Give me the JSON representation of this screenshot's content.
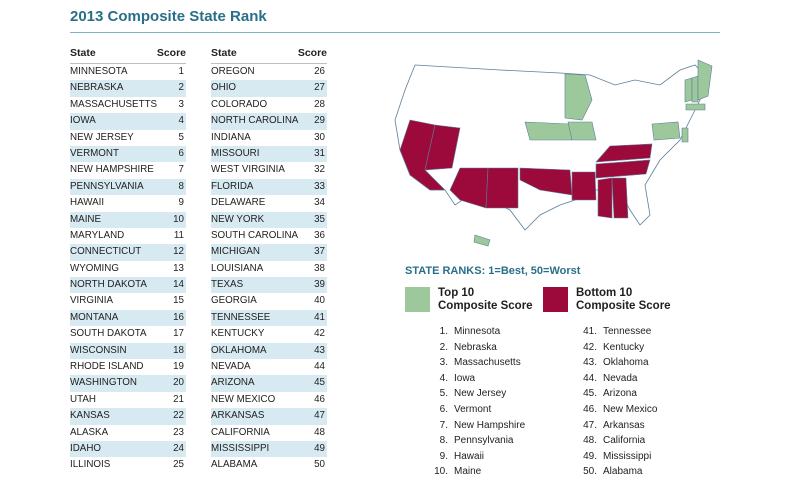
{
  "title": "2013 Composite State Rank",
  "table": {
    "header_state": "State",
    "header_score": "Score",
    "left": [
      {
        "state": "MINNESOTA",
        "score": "1"
      },
      {
        "state": "NEBRASKA",
        "score": "2"
      },
      {
        "state": "MASSACHUSETTS",
        "score": "3"
      },
      {
        "state": "IOWA",
        "score": "4"
      },
      {
        "state": "NEW JERSEY",
        "score": "5"
      },
      {
        "state": "VERMONT",
        "score": "6"
      },
      {
        "state": "NEW HAMPSHIRE",
        "score": "7"
      },
      {
        "state": "PENNSYLVANIA",
        "score": "8"
      },
      {
        "state": "HAWAII",
        "score": "9"
      },
      {
        "state": "MAINE",
        "score": "10"
      },
      {
        "state": "MARYLAND",
        "score": "11"
      },
      {
        "state": "CONNECTICUT",
        "score": "12"
      },
      {
        "state": "WYOMING",
        "score": "13"
      },
      {
        "state": "NORTH DAKOTA",
        "score": "14"
      },
      {
        "state": "VIRGINIA",
        "score": "15"
      },
      {
        "state": "MONTANA",
        "score": "16"
      },
      {
        "state": "SOUTH DAKOTA",
        "score": "17"
      },
      {
        "state": "WISCONSIN",
        "score": "18"
      },
      {
        "state": "RHODE ISLAND",
        "score": "19"
      },
      {
        "state": "WASHINGTON",
        "score": "20"
      },
      {
        "state": "UTAH",
        "score": "21"
      },
      {
        "state": "KANSAS",
        "score": "22"
      },
      {
        "state": "ALASKA",
        "score": "23"
      },
      {
        "state": "IDAHO",
        "score": "24"
      },
      {
        "state": "ILLINOIS",
        "score": "25"
      }
    ],
    "right": [
      {
        "state": "OREGON",
        "score": "26"
      },
      {
        "state": "OHIO",
        "score": "27"
      },
      {
        "state": "COLORADO",
        "score": "28"
      },
      {
        "state": "NORTH CAROLINA",
        "score": "29"
      },
      {
        "state": "INDIANA",
        "score": "30"
      },
      {
        "state": "MISSOURI",
        "score": "31"
      },
      {
        "state": "WEST VIRGINIA",
        "score": "32"
      },
      {
        "state": "FLORIDA",
        "score": "33"
      },
      {
        "state": "DELAWARE",
        "score": "34"
      },
      {
        "state": "NEW YORK",
        "score": "35"
      },
      {
        "state": "SOUTH CAROLINA",
        "score": "36"
      },
      {
        "state": "MICHIGAN",
        "score": "37"
      },
      {
        "state": "LOUISIANA",
        "score": "38"
      },
      {
        "state": "TEXAS",
        "score": "39"
      },
      {
        "state": "GEORGIA",
        "score": "40"
      },
      {
        "state": "TENNESSEE",
        "score": "41"
      },
      {
        "state": "KENTUCKY",
        "score": "42"
      },
      {
        "state": "OKLAHOMA",
        "score": "43"
      },
      {
        "state": "NEVADA",
        "score": "44"
      },
      {
        "state": "ARIZONA",
        "score": "45"
      },
      {
        "state": "NEW MEXICO",
        "score": "46"
      },
      {
        "state": "ARKANSAS",
        "score": "47"
      },
      {
        "state": "CALIFORNIA",
        "score": "48"
      },
      {
        "state": "MISSISSIPPI",
        "score": "49"
      },
      {
        "state": "ALABAMA",
        "score": "50"
      }
    ]
  },
  "ranks_title": "STATE RANKS: 1=Best, 50=Worst",
  "legend": {
    "top": {
      "line1": "Top 10",
      "line2": "Composite Score",
      "color": "#9dc89b"
    },
    "bottom": {
      "line1": "Bottom 10",
      "line2": "Composite Score",
      "color": "#9b0a3a"
    }
  },
  "top10": [
    {
      "num": "1.",
      "name": "Minnesota"
    },
    {
      "num": "2.",
      "name": "Nebraska"
    },
    {
      "num": "3.",
      "name": "Massachusetts"
    },
    {
      "num": "4.",
      "name": "Iowa"
    },
    {
      "num": "5.",
      "name": "New Jersey"
    },
    {
      "num": "6.",
      "name": "Vermont"
    },
    {
      "num": "7.",
      "name": "New Hampshire"
    },
    {
      "num": "8.",
      "name": "Pennsylvania"
    },
    {
      "num": "9.",
      "name": "Hawaii"
    },
    {
      "num": "10.",
      "name": "Maine"
    }
  ],
  "bottom10": [
    {
      "num": "41.",
      "name": "Tennessee"
    },
    {
      "num": "42.",
      "name": "Kentucky"
    },
    {
      "num": "43.",
      "name": "Oklahoma"
    },
    {
      "num": "44.",
      "name": "Nevada"
    },
    {
      "num": "45.",
      "name": "Arizona"
    },
    {
      "num": "46.",
      "name": "New Mexico"
    },
    {
      "num": "47.",
      "name": "Arkansas"
    },
    {
      "num": "48.",
      "name": "California"
    },
    {
      "num": "49.",
      "name": "Mississippi"
    },
    {
      "num": "50.",
      "name": "Alabama"
    }
  ],
  "chart_data": {
    "type": "table",
    "columns": [
      "State",
      "Score"
    ],
    "rows": [
      [
        "MINNESOTA",
        1
      ],
      [
        "NEBRASKA",
        2
      ],
      [
        "MASSACHUSETTS",
        3
      ],
      [
        "IOWA",
        4
      ],
      [
        "NEW JERSEY",
        5
      ],
      [
        "VERMONT",
        6
      ],
      [
        "NEW HAMPSHIRE",
        7
      ],
      [
        "PENNSYLVANIA",
        8
      ],
      [
        "HAWAII",
        9
      ],
      [
        "MAINE",
        10
      ],
      [
        "MARYLAND",
        11
      ],
      [
        "CONNECTICUT",
        12
      ],
      [
        "WYOMING",
        13
      ],
      [
        "NORTH DAKOTA",
        14
      ],
      [
        "VIRGINIA",
        15
      ],
      [
        "MONTANA",
        16
      ],
      [
        "SOUTH DAKOTA",
        17
      ],
      [
        "WISCONSIN",
        18
      ],
      [
        "RHODE ISLAND",
        19
      ],
      [
        "WASHINGTON",
        20
      ],
      [
        "UTAH",
        21
      ],
      [
        "KANSAS",
        22
      ],
      [
        "ALASKA",
        23
      ],
      [
        "IDAHO",
        24
      ],
      [
        "ILLINOIS",
        25
      ],
      [
        "OREGON",
        26
      ],
      [
        "OHIO",
        27
      ],
      [
        "COLORADO",
        28
      ],
      [
        "NORTH CAROLINA",
        29
      ],
      [
        "INDIANA",
        30
      ],
      [
        "MISSOURI",
        31
      ],
      [
        "WEST VIRGINIA",
        32
      ],
      [
        "FLORIDA",
        33
      ],
      [
        "DELAWARE",
        34
      ],
      [
        "NEW YORK",
        35
      ],
      [
        "SOUTH CAROLINA",
        36
      ],
      [
        "MICHIGAN",
        37
      ],
      [
        "LOUISIANA",
        38
      ],
      [
        "TEXAS",
        39
      ],
      [
        "GEORGIA",
        40
      ],
      [
        "TENNESSEE",
        41
      ],
      [
        "KENTUCKY",
        42
      ],
      [
        "OKLAHOMA",
        43
      ],
      [
        "NEVADA",
        44
      ],
      [
        "ARIZONA",
        45
      ],
      [
        "NEW MEXICO",
        46
      ],
      [
        "ARKANSAS",
        47
      ],
      [
        "CALIFORNIA",
        48
      ],
      [
        "MISSISSIPPI",
        49
      ],
      [
        "ALABAMA",
        50
      ]
    ]
  }
}
